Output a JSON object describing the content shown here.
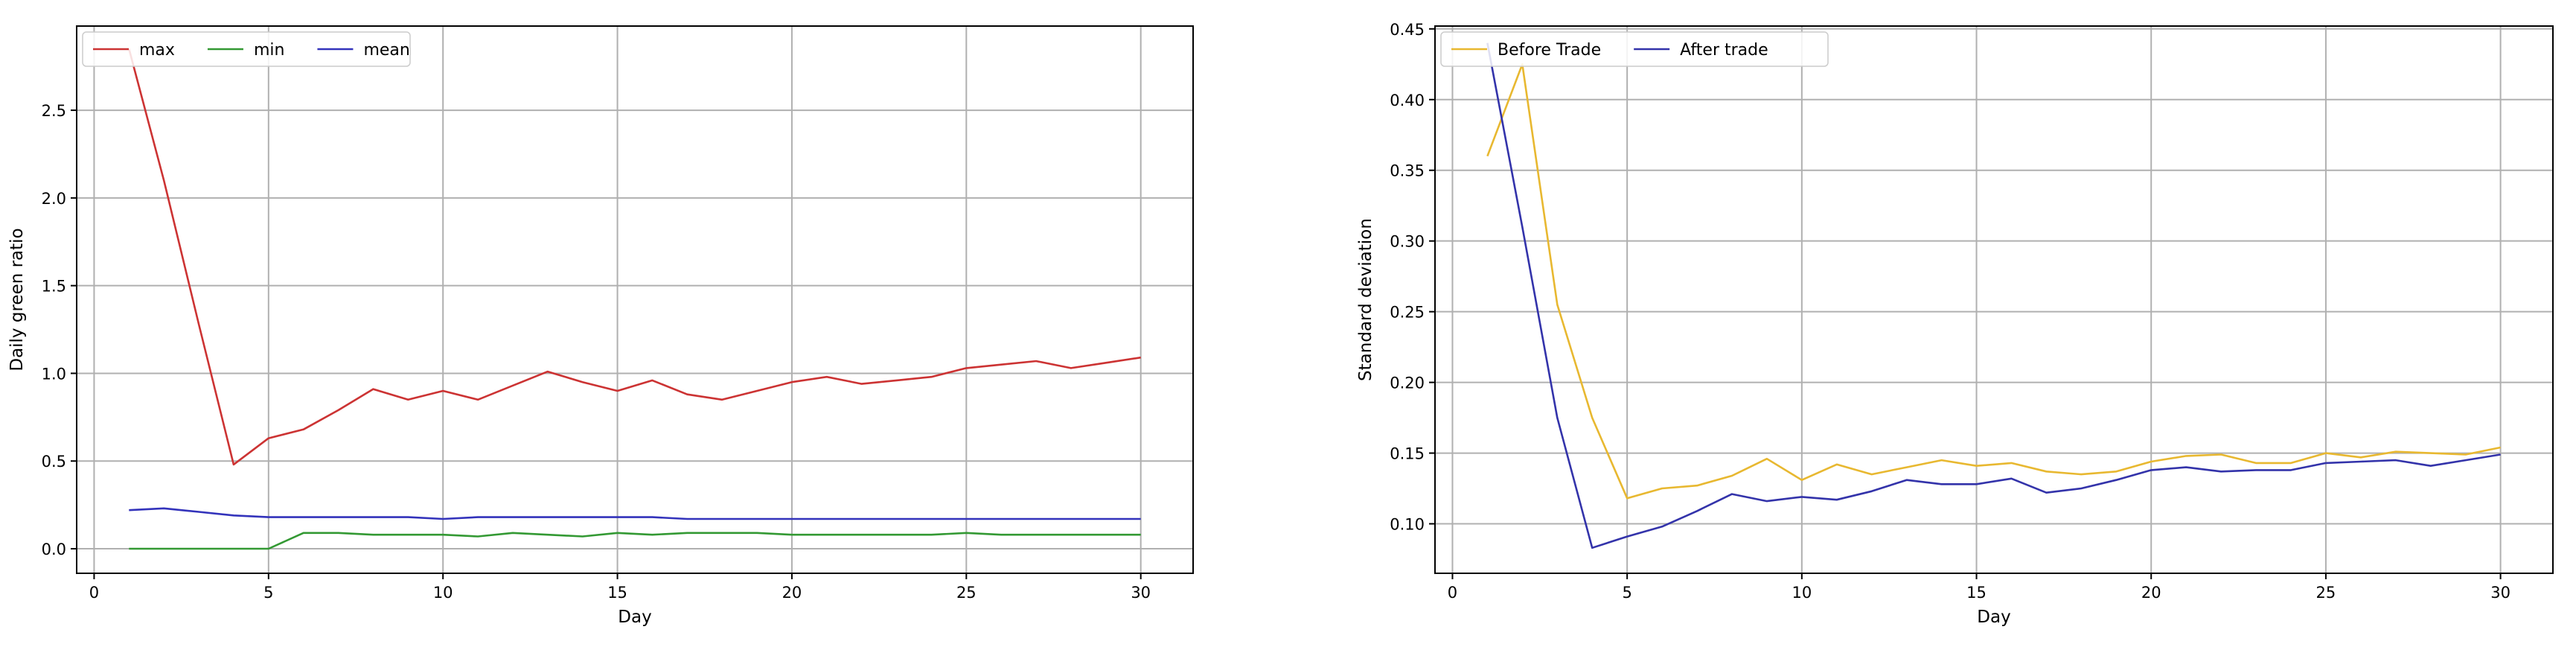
{
  "chart_data": [
    {
      "type": "line",
      "xlabel": "Day",
      "ylabel": "Daily green ratio",
      "xlim": [
        -0.5,
        31.5
      ],
      "ylim": [
        -0.14,
        2.98
      ],
      "xticks": [
        0,
        5,
        10,
        15,
        20,
        25,
        30
      ],
      "xtick_labels": [
        "0",
        "5",
        "10",
        "15",
        "20",
        "25",
        "30"
      ],
      "yticks": [
        0.0,
        0.5,
        1.0,
        1.5,
        2.0,
        2.5
      ],
      "ytick_labels": [
        "0.0",
        "0.5",
        "1.0",
        "1.5",
        "2.0",
        "2.5"
      ],
      "grid": true,
      "legend_position": "top-left",
      "x": [
        1,
        2,
        3,
        4,
        5,
        6,
        7,
        8,
        9,
        10,
        11,
        12,
        13,
        14,
        15,
        16,
        17,
        18,
        19,
        20,
        21,
        22,
        23,
        24,
        25,
        26,
        27,
        28,
        29,
        30
      ],
      "series": [
        {
          "name": "max",
          "color": "#cc3333",
          "values": [
            2.85,
            2.1,
            1.28,
            0.48,
            0.63,
            0.68,
            0.79,
            0.91,
            0.85,
            0.9,
            0.85,
            0.93,
            1.01,
            0.95,
            0.9,
            0.96,
            0.88,
            0.85,
            0.9,
            0.95,
            0.98,
            0.94,
            0.96,
            0.98,
            1.03,
            1.05,
            1.07,
            1.03,
            1.06,
            1.09
          ]
        },
        {
          "name": "min",
          "color": "#339933",
          "values": [
            0.0,
            0.0,
            0.0,
            0.0,
            0.0,
            0.09,
            0.09,
            0.08,
            0.08,
            0.08,
            0.07,
            0.09,
            0.08,
            0.07,
            0.09,
            0.08,
            0.09,
            0.09,
            0.09,
            0.08,
            0.08,
            0.08,
            0.08,
            0.08,
            0.09,
            0.08,
            0.08,
            0.08,
            0.08,
            0.08
          ]
        },
        {
          "name": "mean",
          "color": "#3333bb",
          "values": [
            0.22,
            0.23,
            0.21,
            0.19,
            0.18,
            0.18,
            0.18,
            0.18,
            0.18,
            0.17,
            0.18,
            0.18,
            0.18,
            0.18,
            0.18,
            0.18,
            0.17,
            0.17,
            0.17,
            0.17,
            0.17,
            0.17,
            0.17,
            0.17,
            0.17,
            0.17,
            0.17,
            0.17,
            0.17,
            0.17
          ]
        }
      ]
    },
    {
      "type": "line",
      "xlabel": "Day",
      "ylabel": "Standard deviation",
      "xlim": [
        -0.5,
        31.5
      ],
      "ylim": [
        0.065,
        0.452
      ],
      "xticks": [
        0,
        5,
        10,
        15,
        20,
        25,
        30
      ],
      "xtick_labels": [
        "0",
        "5",
        "10",
        "15",
        "20",
        "25",
        "30"
      ],
      "yticks": [
        0.1,
        0.15,
        0.2,
        0.25,
        0.3,
        0.35,
        0.4,
        0.45
      ],
      "ytick_labels": [
        "0.10",
        "0.15",
        "0.20",
        "0.25",
        "0.30",
        "0.35",
        "0.40",
        "0.45"
      ],
      "grid": true,
      "legend_position": "top-left",
      "x": [
        1,
        2,
        3,
        4,
        5,
        6,
        7,
        8,
        9,
        10,
        11,
        12,
        13,
        14,
        15,
        16,
        17,
        18,
        19,
        20,
        21,
        22,
        23,
        24,
        25,
        26,
        27,
        28,
        29,
        30
      ],
      "series": [
        {
          "name": "Before Trade",
          "color": "#e8b830",
          "values": [
            0.36,
            0.425,
            0.255,
            0.175,
            0.118,
            0.125,
            0.127,
            0.134,
            0.146,
            0.131,
            0.142,
            0.135,
            0.14,
            0.145,
            0.141,
            0.143,
            0.137,
            0.135,
            0.137,
            0.144,
            0.148,
            0.149,
            0.143,
            0.143,
            0.15,
            0.147,
            0.151,
            0.15,
            0.149,
            0.154
          ]
        },
        {
          "name": "After trade",
          "color": "#3333aa",
          "values": [
            0.44,
            0.31,
            0.175,
            0.083,
            0.091,
            0.098,
            0.109,
            0.121,
            0.116,
            0.119,
            0.117,
            0.123,
            0.131,
            0.128,
            0.128,
            0.132,
            0.122,
            0.125,
            0.131,
            0.138,
            0.14,
            0.137,
            0.138,
            0.138,
            0.143,
            0.144,
            0.145,
            0.141,
            0.145,
            0.149
          ]
        }
      ]
    }
  ]
}
